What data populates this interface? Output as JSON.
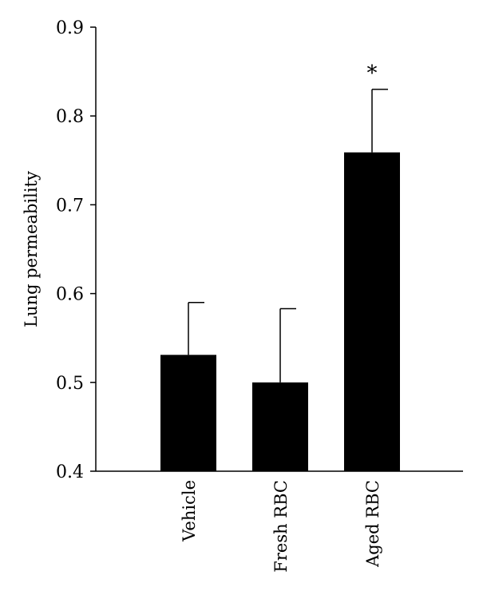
{
  "chart_data": {
    "type": "bar",
    "title": "",
    "xlabel": "",
    "ylabel": "Lung permeability",
    "categories": [
      "Vehicle",
      "Fresh RBC",
      "Aged RBC"
    ],
    "values": [
      0.531,
      0.5,
      0.759
    ],
    "error_upper": [
      0.59,
      0.583,
      0.83
    ],
    "significance": [
      "",
      "",
      "*"
    ],
    "ylim": [
      0.4,
      0.9
    ],
    "yticks": [
      0.4,
      0.5,
      0.6,
      0.7,
      0.8,
      0.9
    ],
    "ytick_labels": [
      "0.4",
      "0.5",
      "0.6",
      "0.7",
      "0.8",
      "0.9"
    ],
    "grid": false,
    "bar_color": "#000000"
  }
}
